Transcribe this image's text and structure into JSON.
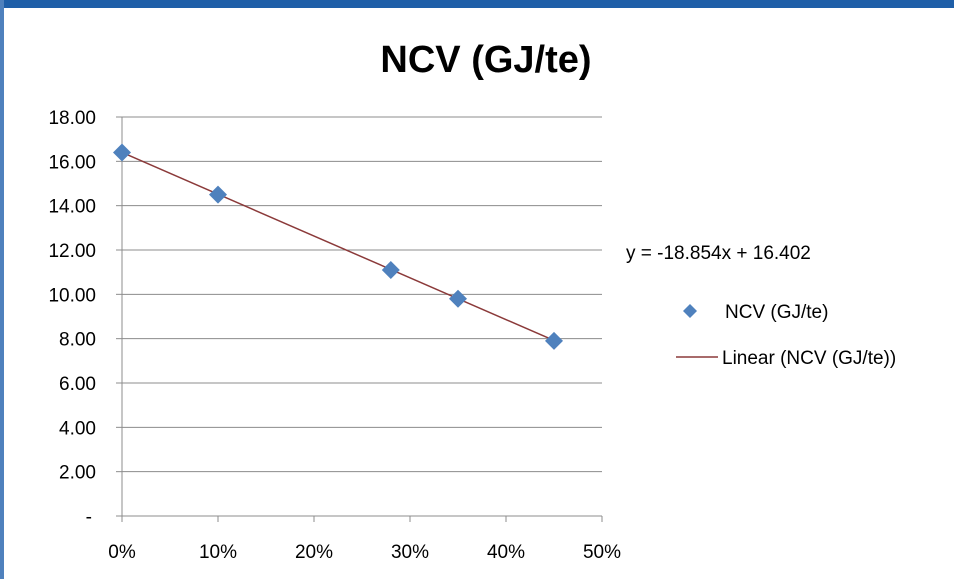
{
  "chart_data": {
    "type": "scatter",
    "title": "NCV (GJ/te)",
    "xlabel": "",
    "ylabel": "",
    "x_ticks": [
      "0%",
      "10%",
      "20%",
      "30%",
      "40%",
      "50%"
    ],
    "y_ticks": [
      "-",
      "2.00",
      "4.00",
      "6.00",
      "8.00",
      "10.00",
      "12.00",
      "14.00",
      "16.00",
      "18.00"
    ],
    "xlim": [
      0,
      0.5
    ],
    "ylim": [
      0,
      18
    ],
    "grid": "horizontal",
    "legend_position": "right",
    "series": [
      {
        "name": "NCV (GJ/te)",
        "marker": "diamond",
        "color": "#4f81bd",
        "x": [
          0.0,
          0.1,
          0.28,
          0.35,
          0.45
        ],
        "y": [
          16.4,
          14.5,
          11.1,
          9.8,
          7.9
        ]
      }
    ],
    "trendline": {
      "name": "Linear (NCV (GJ/te))",
      "color": "#8b3a3a",
      "slope": -18.854,
      "intercept": 16.402,
      "x_range": [
        0.0,
        0.45
      ],
      "equation": "y = -18.854x + 16.402"
    }
  },
  "colors": {
    "frame_border": "#4f81bd",
    "top_banner": "#1f5fa8",
    "gridline": "#8c8c8c",
    "axis": "#8c8c8c"
  }
}
